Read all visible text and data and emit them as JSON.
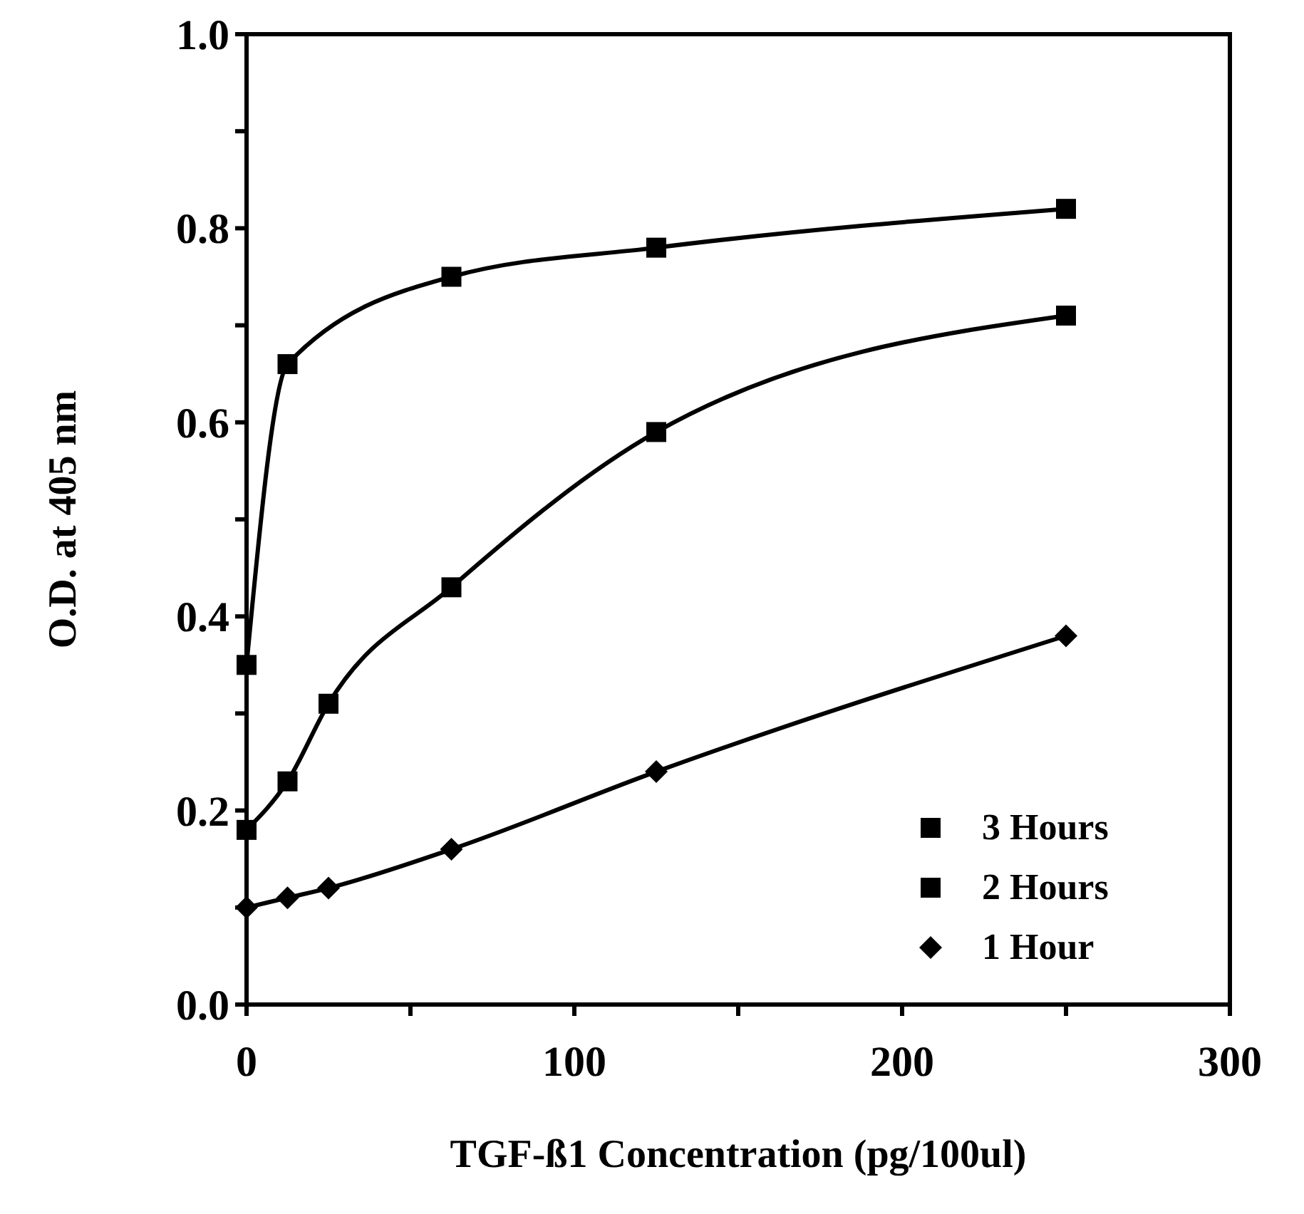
{
  "chart_data": {
    "type": "line",
    "xlabel": "TGF-ß1  Concentration  (pg/100ul)",
    "ylabel": "O.D.  at  405  nm",
    "xlim": [
      0,
      300
    ],
    "xticks": [
      0,
      {
        "value": 50,
        "label": null
      },
      100,
      {
        "value": 150,
        "label": null
      },
      200,
      {
        "value": 250,
        "label": null
      },
      300
    ],
    "ylim": [
      0,
      1
    ],
    "yticks": [
      {
        "value": 0,
        "label": "0.0"
      },
      {
        "value": 0.1,
        "label": null
      },
      {
        "value": 0.2,
        "label": "0.2"
      },
      {
        "value": 0.3,
        "label": null
      },
      {
        "value": 0.4,
        "label": "0.4"
      },
      {
        "value": 0.5,
        "label": null
      },
      {
        "value": 0.6,
        "label": "0.6"
      },
      {
        "value": 0.7,
        "label": null
      },
      {
        "value": 0.8,
        "label": "0.8"
      },
      {
        "value": 0.9,
        "label": null
      },
      {
        "value": 1,
        "label": "1.0"
      }
    ],
    "grid": false,
    "legend": "bottom right",
    "line_style": "solid",
    "series": [
      {
        "name": "3 Hours",
        "color": "#000000",
        "marker": "square",
        "x": [
          0,
          12.5,
          62.5,
          125,
          250
        ],
        "values": [
          0.35,
          0.66,
          0.75,
          0.78,
          0.82
        ]
      },
      {
        "name": "2 Hours",
        "color": "#000000",
        "marker": "square",
        "x": [
          0,
          12.5,
          25,
          62.5,
          125,
          250
        ],
        "values": [
          0.18,
          0.23,
          0.31,
          0.43,
          0.59,
          0.71
        ]
      },
      {
        "name": "1 Hour",
        "color": "#000000",
        "marker": "diamond",
        "x": [
          0,
          12.5,
          25,
          62.5,
          125,
          250
        ],
        "values": [
          0.1,
          0.11,
          0.12,
          0.16,
          0.24,
          0.38
        ]
      }
    ]
  }
}
